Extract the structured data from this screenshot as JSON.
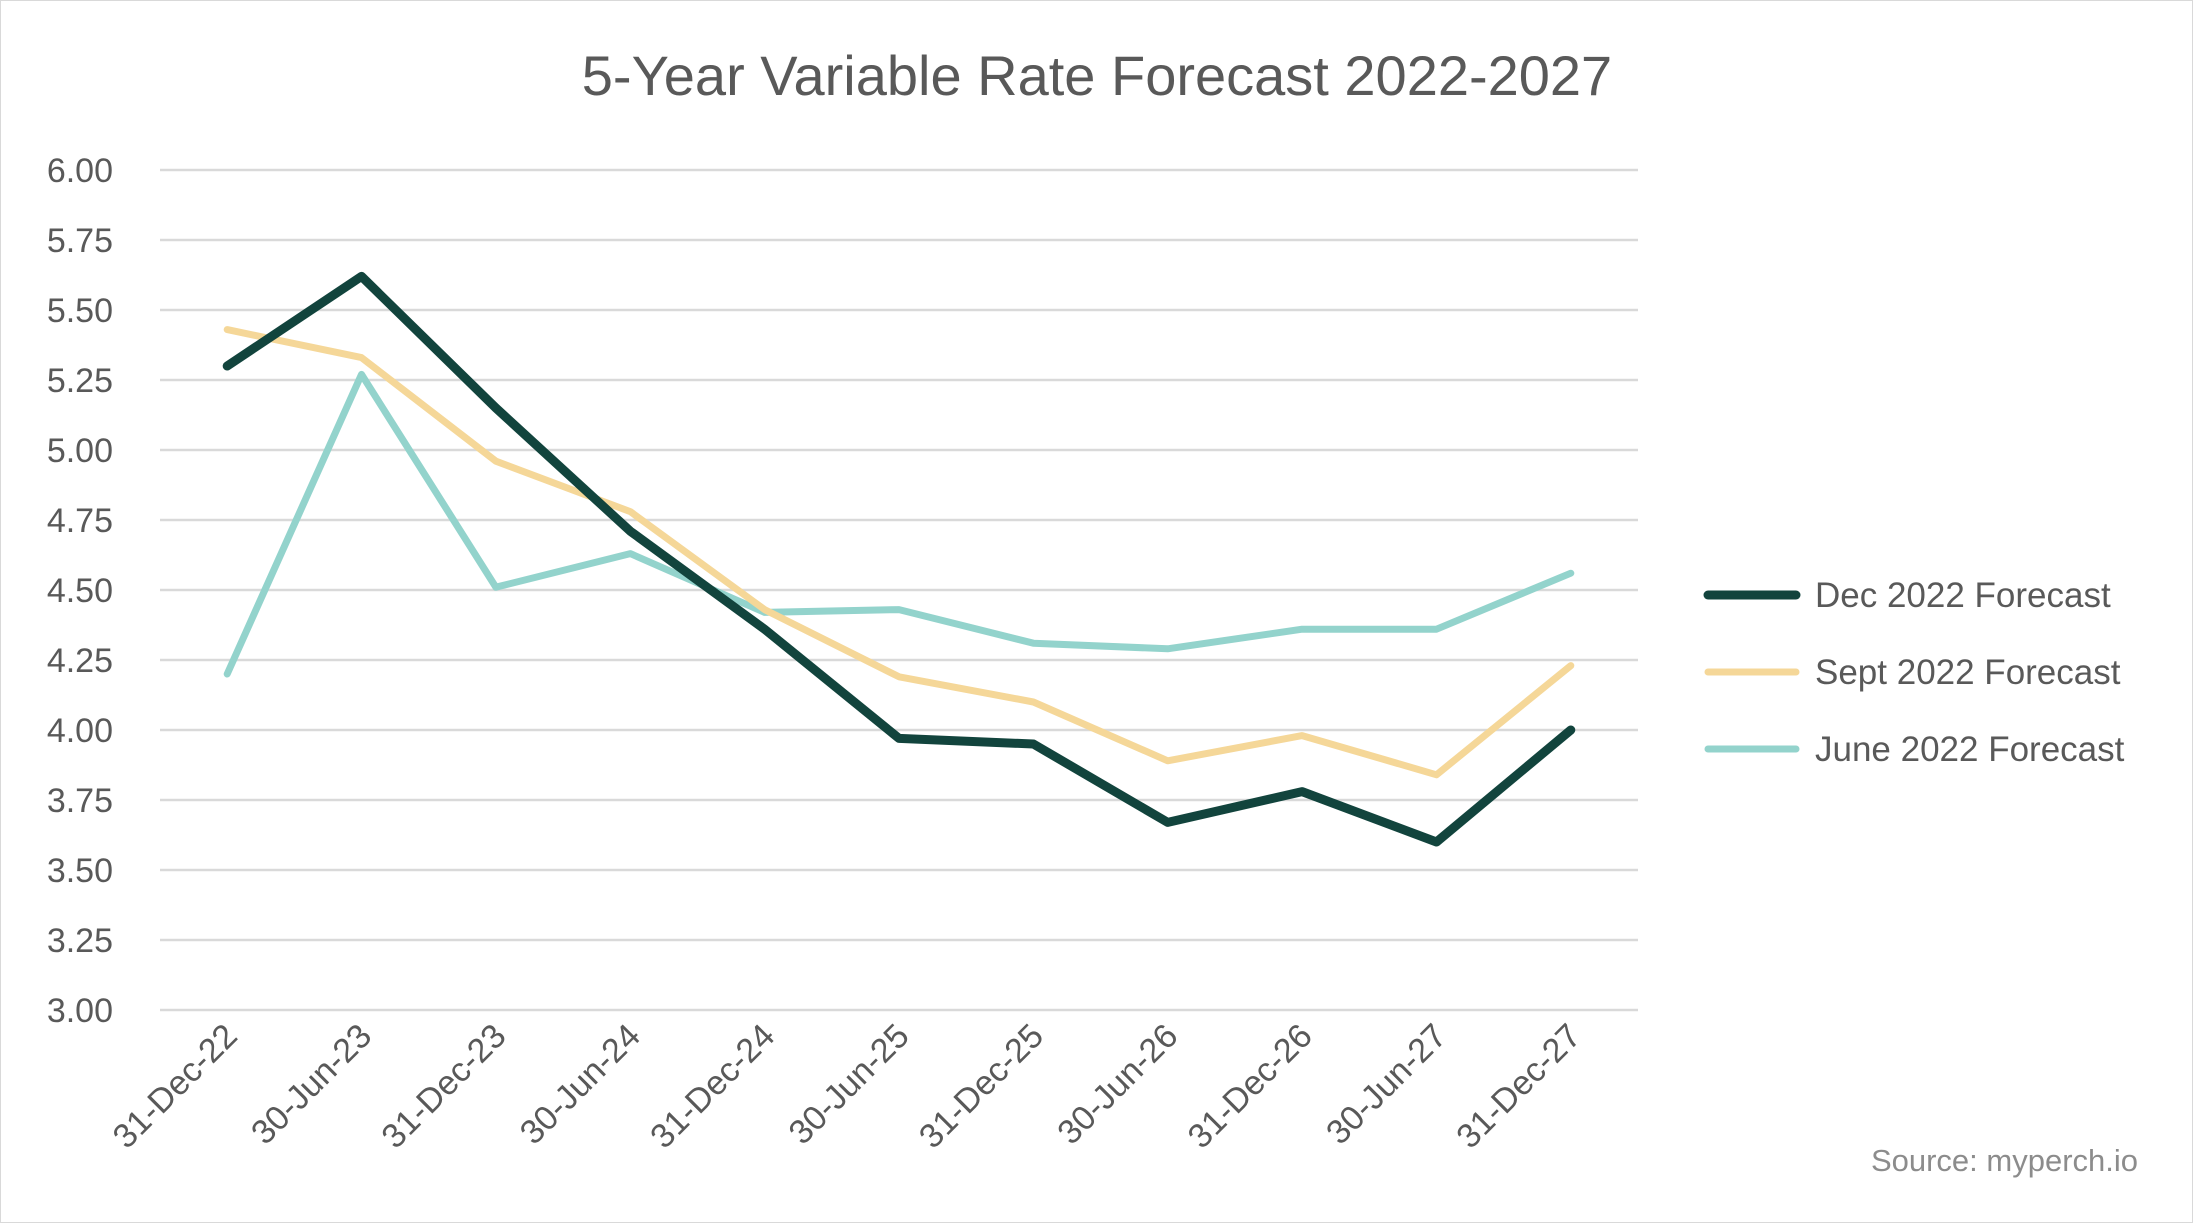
{
  "chart_data": {
    "type": "line",
    "title": "5-Year Variable Rate Forecast 2022-2027",
    "xlabel": "",
    "ylabel": "",
    "categories": [
      "31-Dec-22",
      "30-Jun-23",
      "31-Dec-23",
      "30-Jun-24",
      "31-Dec-24",
      "30-Jun-25",
      "31-Dec-25",
      "30-Jun-26",
      "31-Dec-26",
      "30-Jun-27",
      "31-Dec-27"
    ],
    "ylim": [
      3.0,
      6.0
    ],
    "ytick_step": 0.25,
    "yticks": [
      "3.00",
      "3.25",
      "3.50",
      "3.75",
      "4.00",
      "4.25",
      "4.50",
      "4.75",
      "5.00",
      "5.25",
      "5.50",
      "5.75",
      "6.00"
    ],
    "grid": true,
    "legend_position": "right",
    "series": [
      {
        "name": "Dec 2022 Forecast",
        "color": "#12443d",
        "values": [
          5.3,
          5.62,
          5.15,
          4.71,
          4.36,
          3.97,
          3.95,
          3.67,
          3.78,
          3.6,
          4.0
        ]
      },
      {
        "name": "Sept 2022 Forecast",
        "color": "#f5d798",
        "values": [
          5.43,
          5.33,
          4.96,
          4.78,
          4.43,
          4.19,
          4.1,
          3.89,
          3.98,
          3.84,
          4.23
        ]
      },
      {
        "name": "June 2022 Forecast",
        "color": "#93d3cc",
        "values": [
          4.2,
          5.27,
          4.51,
          4.63,
          4.42,
          4.43,
          4.31,
          4.29,
          4.36,
          4.36,
          4.56
        ]
      }
    ],
    "source": "Source: myperch.io"
  }
}
